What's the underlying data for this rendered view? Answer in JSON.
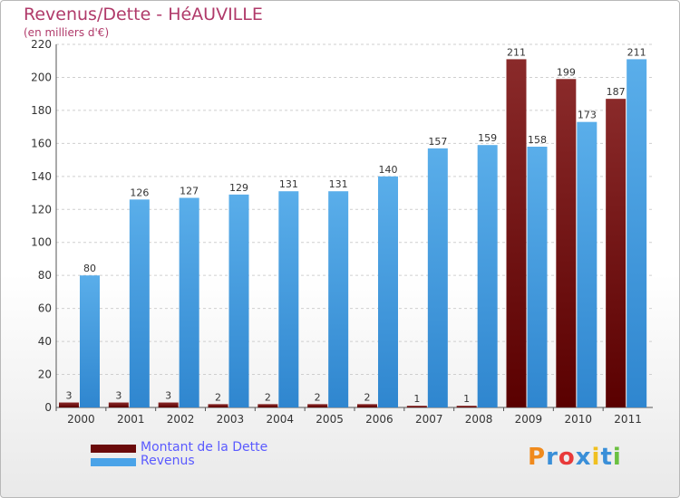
{
  "chart_data": {
    "type": "bar",
    "title": "Revenus/Dette - HéAUVILLE",
    "subtitle": "(en milliers d'€)",
    "categories": [
      "2000",
      "2001",
      "2002",
      "2003",
      "2004",
      "2005",
      "2006",
      "2007",
      "2008",
      "2009",
      "2010",
      "2011"
    ],
    "series": [
      {
        "name": "Montant de la Dette",
        "color": "#7a1515",
        "values": [
          3,
          3,
          3,
          2,
          2,
          2,
          2,
          1,
          1,
          211,
          199,
          187
        ]
      },
      {
        "name": "Revenus",
        "color": "#4aa3e8",
        "values": [
          80,
          126,
          127,
          129,
          131,
          131,
          140,
          157,
          159,
          158,
          173,
          211
        ]
      }
    ],
    "ylim": [
      0,
      220
    ],
    "yticks": [
      0,
      20,
      40,
      60,
      80,
      100,
      120,
      140,
      160,
      180,
      200,
      220
    ],
    "grid": true,
    "legend": "bottom-left"
  },
  "logo": {
    "text": "Proxiti",
    "letters": [
      "P",
      "r",
      "o",
      "x",
      "i",
      "t",
      "i"
    ],
    "colors": [
      "#f08a1c",
      "#3a8fd8",
      "#e83a3a",
      "#3a8fd8",
      "#f0c020",
      "#3a8fd8",
      "#6ac040"
    ]
  }
}
